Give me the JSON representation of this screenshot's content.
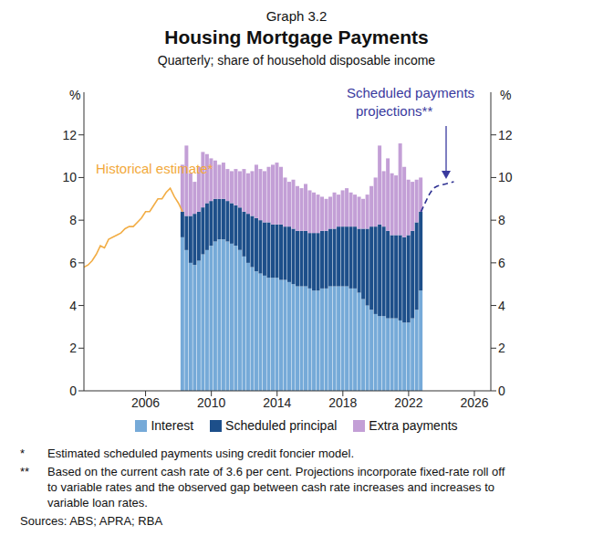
{
  "chart_data": {
    "type": "bar",
    "graph_number": "Graph 3.2",
    "title": "Housing Mortgage Payments",
    "subtitle": "Quarterly; share of household disposable income",
    "y_label": "%",
    "y2_label": "%",
    "stacked": true,
    "grid": false,
    "legend": "bottom",
    "x": [
      2008.25,
      2008.5,
      2008.75,
      2009,
      2009.25,
      2009.5,
      2009.75,
      2010,
      2010.25,
      2010.5,
      2010.75,
      2011,
      2011.25,
      2011.5,
      2011.75,
      2012,
      2012.25,
      2012.5,
      2012.75,
      2013,
      2013.25,
      2013.5,
      2013.75,
      2014,
      2014.25,
      2014.5,
      2014.75,
      2015,
      2015.25,
      2015.5,
      2015.75,
      2016,
      2016.25,
      2016.5,
      2016.75,
      2017,
      2017.25,
      2017.5,
      2017.75,
      2018,
      2018.25,
      2018.5,
      2018.75,
      2019,
      2019.25,
      2019.5,
      2019.75,
      2020,
      2020.25,
      2020.5,
      2020.75,
      2021,
      2021.25,
      2021.5,
      2021.75,
      2022,
      2022.25,
      2022.5,
      2022.75
    ],
    "series": [
      {
        "name": "Interest",
        "color": "#76aad8",
        "values": [
          7.2,
          6.6,
          6.0,
          5.9,
          6.1,
          6.4,
          6.6,
          6.8,
          7.0,
          7.1,
          7.1,
          7.0,
          6.9,
          6.8,
          6.6,
          6.3,
          6.0,
          5.8,
          5.6,
          5.5,
          5.4,
          5.3,
          5.3,
          5.3,
          5.2,
          5.2,
          5.1,
          5.0,
          4.9,
          4.9,
          4.9,
          4.8,
          4.7,
          4.7,
          4.8,
          4.8,
          4.9,
          4.9,
          4.9,
          4.9,
          4.9,
          4.8,
          4.8,
          4.6,
          4.3,
          4.0,
          3.8,
          3.6,
          3.5,
          3.5,
          3.4,
          3.4,
          3.4,
          3.3,
          3.2,
          3.2,
          3.4,
          3.8,
          4.7
        ]
      },
      {
        "name": "Scheduled principal",
        "color": "#1d4f8a",
        "values": [
          1.2,
          1.6,
          2.2,
          2.4,
          2.3,
          2.2,
          2.2,
          2.1,
          2.0,
          1.9,
          1.9,
          1.9,
          1.9,
          1.9,
          2.0,
          2.1,
          2.3,
          2.4,
          2.5,
          2.5,
          2.5,
          2.6,
          2.5,
          2.5,
          2.6,
          2.5,
          2.6,
          2.6,
          2.6,
          2.6,
          2.6,
          2.6,
          2.7,
          2.7,
          2.7,
          2.7,
          2.7,
          2.7,
          2.8,
          2.8,
          2.8,
          2.9,
          2.9,
          3.0,
          3.3,
          3.6,
          3.9,
          4.1,
          4.3,
          4.2,
          4.1,
          3.9,
          3.9,
          4.0,
          4.0,
          4.1,
          4.1,
          4.1,
          3.7
        ]
      },
      {
        "name": "Extra payments",
        "color": "#c39fd6",
        "values": [
          2.2,
          3.3,
          2.0,
          1.5,
          2.1,
          2.6,
          2.3,
          2.0,
          1.8,
          1.6,
          1.7,
          1.5,
          1.5,
          1.7,
          1.7,
          2.0,
          1.9,
          2.1,
          2.5,
          2.4,
          2.4,
          2.6,
          2.8,
          2.9,
          2.7,
          2.3,
          2.1,
          2.3,
          2.1,
          2.0,
          2.2,
          2.0,
          1.9,
          1.8,
          1.6,
          1.5,
          1.5,
          1.7,
          1.5,
          1.7,
          1.8,
          1.6,
          1.5,
          1.5,
          1.4,
          1.6,
          1.9,
          2.3,
          3.7,
          2.6,
          3.4,
          2.9,
          2.8,
          4.3,
          3.3,
          2.6,
          2.3,
          2.0,
          1.6
        ]
      },
      {
        "type": "line",
        "color": "#f2ad45",
        "line_style": "solid",
        "x": [
          2002.25,
          2002.5,
          2002.75,
          2003,
          2003.25,
          2003.5,
          2003.75,
          2004,
          2004.25,
          2004.5,
          2004.75,
          2005,
          2005.25,
          2005.5,
          2005.75,
          2006,
          2006.25,
          2006.5,
          2006.75,
          2007,
          2007.25,
          2007.5,
          2007.75,
          2008,
          2008.25
        ],
        "values": [
          5.8,
          5.9,
          6.1,
          6.4,
          6.8,
          6.7,
          7.1,
          7.2,
          7.3,
          7.4,
          7.6,
          7.7,
          7.7,
          7.9,
          8.1,
          8.4,
          8.4,
          8.7,
          9.0,
          9.0,
          9.3,
          9.5,
          9.1,
          8.8,
          8.4
        ]
      },
      {
        "type": "line",
        "color": "#2e3192",
        "line_style": "dashed",
        "x": [
          2022.75,
          2023,
          2023.25,
          2023.5,
          2023.75,
          2024,
          2024.25,
          2024.5,
          2024.75
        ],
        "values": [
          8.4,
          8.8,
          9.2,
          9.5,
          9.6,
          9.65,
          9.7,
          9.75,
          9.8
        ]
      }
    ],
    "xlim": [
      2002.25,
      2027
    ],
    "xticks": [
      2006,
      2010,
      2014,
      2018,
      2022,
      2026
    ],
    "ylim": [
      0,
      14
    ],
    "yticks": [
      0,
      2,
      4,
      6,
      8,
      10,
      12
    ],
    "y2lim": [
      0,
      14
    ],
    "y2ticks": [
      0,
      2,
      4,
      6,
      8,
      10,
      12
    ],
    "annotations": [
      {
        "text": [
          "Historical estimate*"
        ],
        "color": "#f2a93b"
      },
      {
        "text": [
          "Scheduled payments",
          "projections**"
        ],
        "color": "#3a3a9e"
      }
    ],
    "notes": [
      {
        "mark": "*",
        "text": "Estimated scheduled payments using credit foncier model."
      },
      {
        "mark": "**",
        "text": "Based on the current cash rate of 3.6 per cent. Projections incorporate fixed-rate roll off to variable rates and the observed gap between cash rate increases and increases to variable loan rates."
      }
    ],
    "sources": "Sources: ABS; APRA; RBA"
  }
}
